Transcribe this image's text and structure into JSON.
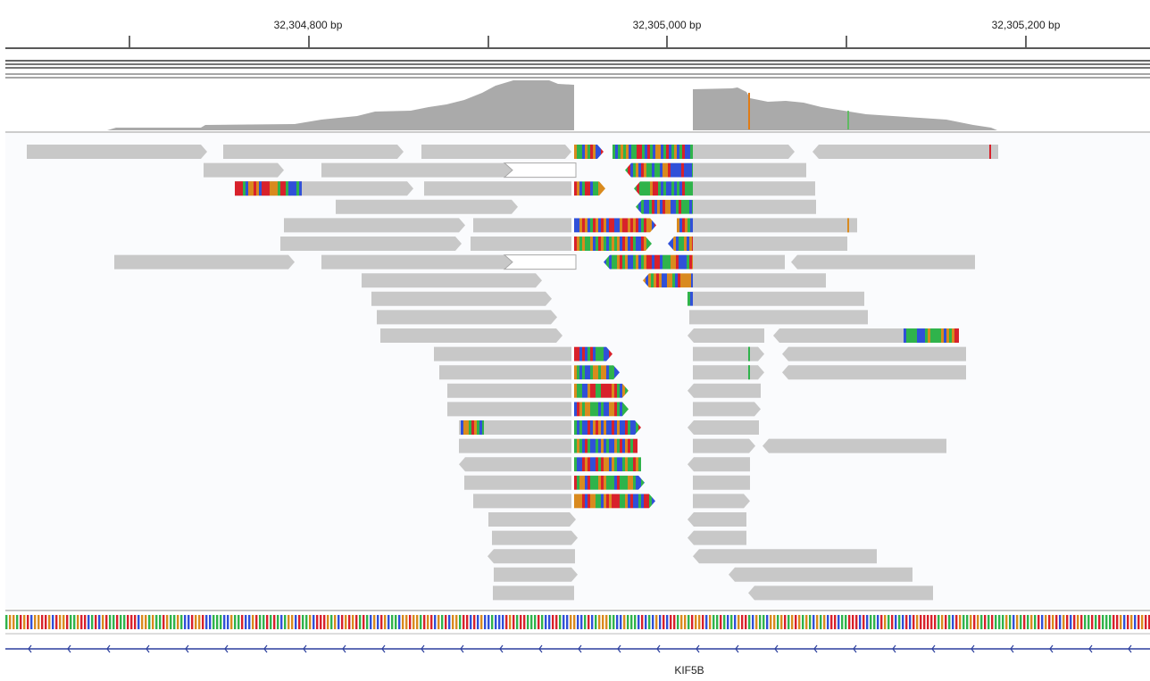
{
  "ruler": {
    "ticks": [
      {
        "label": "32,304,800 bp"
      },
      {
        "label": "32,305,000 bp"
      },
      {
        "label": "32,305,200 bp"
      }
    ]
  },
  "gene": {
    "name": "KIF5B",
    "strand": "minus"
  },
  "colors": {
    "read": "#c8c8c8",
    "coverage": "#aaaaaa",
    "gene_line": "#2c3f9e",
    "base_A": "#2fb34b",
    "base_C": "#3050d8",
    "base_G": "#d98a1e",
    "base_T": "#d8212b",
    "background": "#fafbfd"
  },
  "tracks": {
    "coverage_track": "coverage",
    "alignment_track": "alignments",
    "sequence_track": "reference-sequence",
    "gene_track": "refseq-genes"
  }
}
